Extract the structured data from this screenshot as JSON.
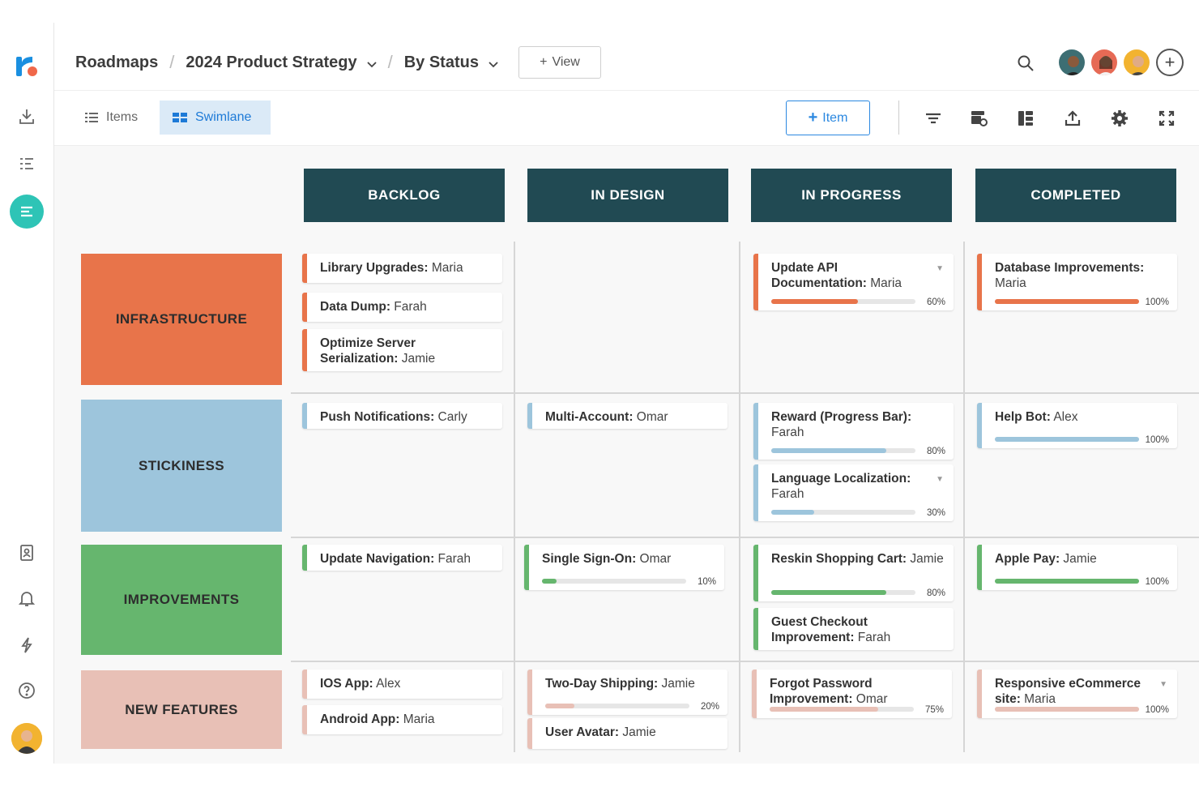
{
  "breadcrumb": {
    "root": "Roadmaps",
    "roadmap": "2024 Product Strategy",
    "view": "By Status",
    "add_view": "View"
  },
  "toolbar": {
    "items_tab": "Items",
    "swimlane_tab": "Swimlane",
    "add_item": "Item"
  },
  "columns": [
    "BACKLOG",
    "IN DESIGN",
    "IN PROGRESS",
    "COMPLETED"
  ],
  "lanes": [
    {
      "label": "INFRASTRUCTURE",
      "color": "#e8744a"
    },
    {
      "label": "STICKINESS",
      "color": "#9dc5dc"
    },
    {
      "label": "IMPROVEMENTS",
      "color": "#66b66e"
    },
    {
      "label": "NEW FEATURES",
      "color": "#e8c0b6"
    }
  ],
  "cards": [
    {
      "title": "Library Upgrades:",
      "owner": "Maria",
      "lane": 0,
      "col": 0
    },
    {
      "title": "Data Dump:",
      "owner": "Farah",
      "lane": 0,
      "col": 0
    },
    {
      "title": "Optimize Server Serialization:",
      "owner": "Jamie",
      "lane": 0,
      "col": 0
    },
    {
      "title": "Update API Documentation:",
      "owner": "Maria",
      "lane": 0,
      "col": 2,
      "progress": 60,
      "progress_label": "60%",
      "caret": true
    },
    {
      "title": "Database Improvements:",
      "owner": "Maria",
      "lane": 0,
      "col": 3,
      "progress": 100,
      "progress_label": "100%"
    },
    {
      "title": "Push Notifications:",
      "owner": "Carly",
      "lane": 1,
      "col": 0
    },
    {
      "title": "Multi-Account:",
      "owner": "Omar",
      "lane": 1,
      "col": 1
    },
    {
      "title": "Reward (Progress Bar):",
      "owner": "Farah",
      "lane": 1,
      "col": 2,
      "progress": 80,
      "progress_label": "80%"
    },
    {
      "title": "Language Localization:",
      "owner": "Farah",
      "lane": 1,
      "col": 2,
      "progress": 30,
      "progress_label": "30%",
      "caret": true
    },
    {
      "title": "Help Bot:",
      "owner": "Alex",
      "lane": 1,
      "col": 3,
      "progress": 100,
      "progress_label": "100%"
    },
    {
      "title": "Update Navigation:",
      "owner": "Farah",
      "lane": 2,
      "col": 0
    },
    {
      "title": "Single Sign-On:",
      "owner": "Omar",
      "lane": 2,
      "col": 1,
      "progress": 10,
      "progress_label": "10%"
    },
    {
      "title": "Reskin Shopping Cart:",
      "owner": "Jamie",
      "lane": 2,
      "col": 2,
      "progress": 80,
      "progress_label": "80%"
    },
    {
      "title": "Guest Checkout Improvement:",
      "owner": "Farah",
      "lane": 2,
      "col": 2
    },
    {
      "title": "Apple Pay:",
      "owner": "Jamie",
      "lane": 2,
      "col": 3,
      "progress": 100,
      "progress_label": "100%"
    },
    {
      "title": "IOS App:",
      "owner": "Alex",
      "lane": 3,
      "col": 0
    },
    {
      "title": "Android App:",
      "owner": "Maria",
      "lane": 3,
      "col": 0
    },
    {
      "title": "Two-Day Shipping:",
      "owner": "Jamie",
      "lane": 3,
      "col": 1,
      "progress": 20,
      "progress_label": "20%"
    },
    {
      "title": "User Avatar:",
      "owner": "Jamie",
      "lane": 3,
      "col": 1
    },
    {
      "title": "Forgot Password Improvement:",
      "owner": "Omar",
      "lane": 3,
      "col": 2,
      "progress": 75,
      "progress_label": "75%"
    },
    {
      "title": "Responsive eCommerce site:",
      "owner": "Maria",
      "lane": 3,
      "col": 3,
      "progress": 100,
      "progress_label": "100%",
      "caret": true
    }
  ],
  "icons": {
    "rail": [
      "roadmunk-logo",
      "import-icon",
      "list-icon",
      "swimlane-icon",
      "address-book-icon",
      "bell-icon",
      "lightning-icon",
      "help-icon"
    ],
    "header": [
      "search-icon",
      "add-user-icon"
    ],
    "toolbar": [
      "filter-icon",
      "item-settings-icon",
      "layout-icon",
      "export-icon",
      "gear-icon",
      "fullscreen-icon"
    ]
  }
}
